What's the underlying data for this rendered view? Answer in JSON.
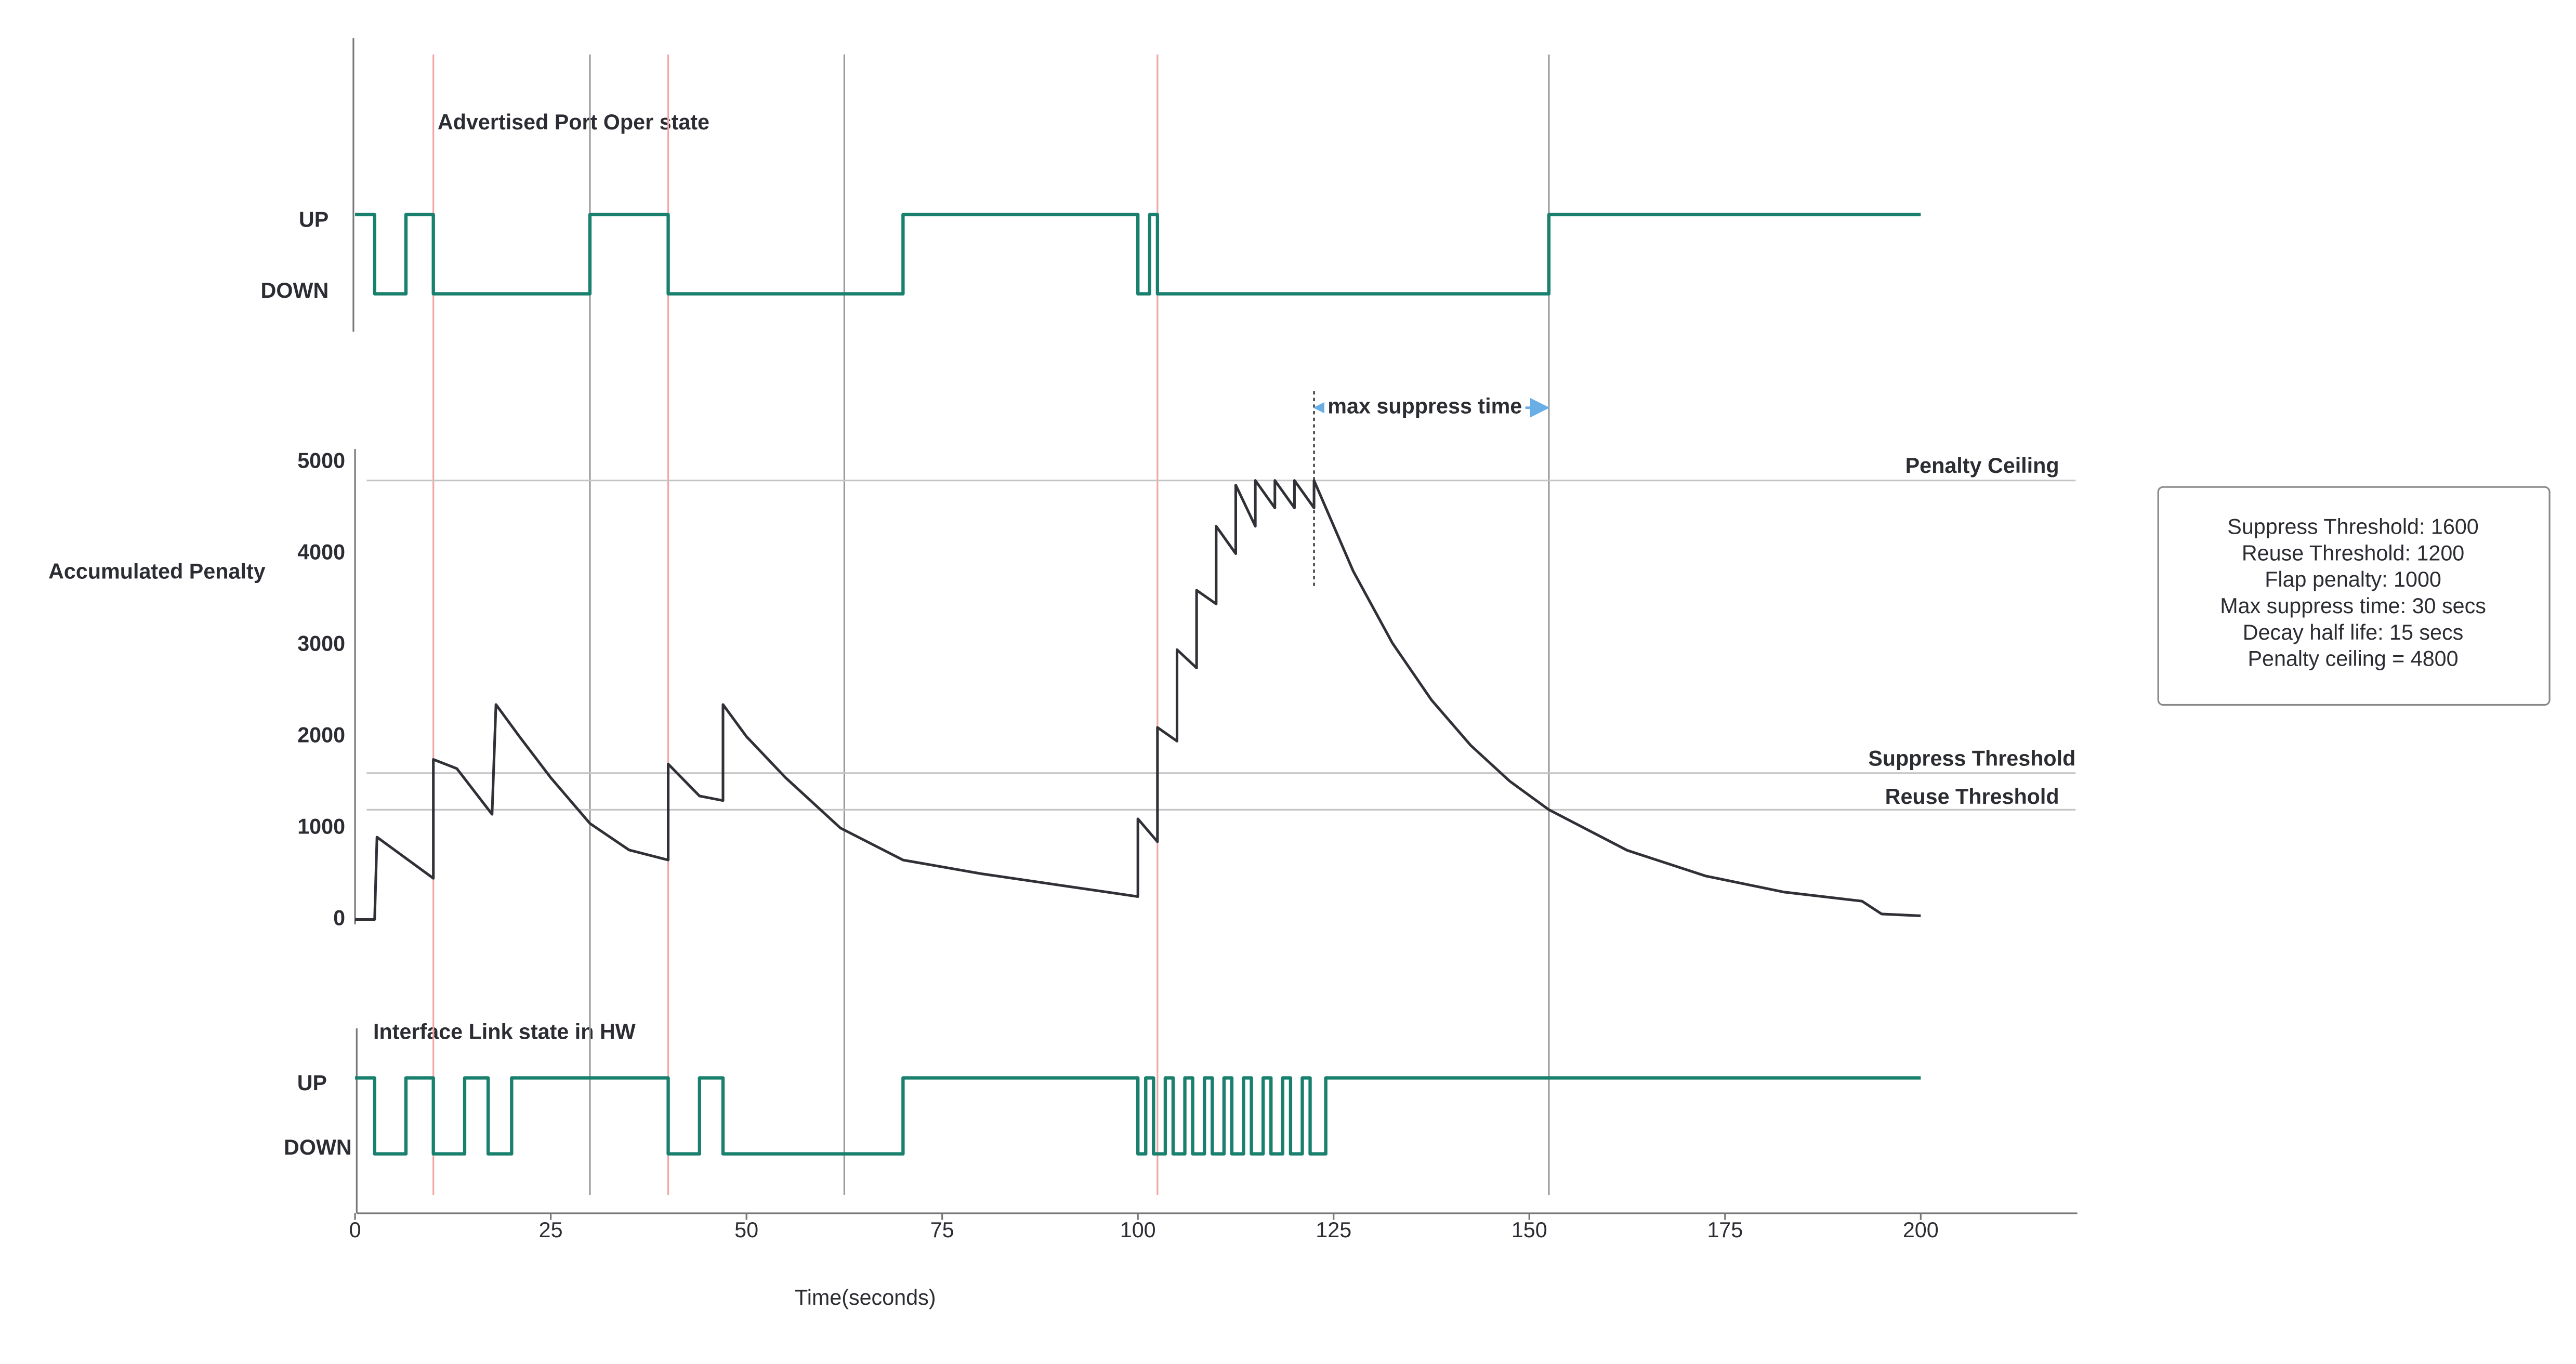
{
  "x_axis": {
    "label": "Time(seconds)",
    "xlim": [
      0,
      220
    ],
    "xticks": [
      0,
      25,
      50,
      75,
      100,
      125,
      150,
      175,
      200
    ]
  },
  "top_panel": {
    "title": "Advertised Port Oper state",
    "levels": [
      "UP",
      "DOWN"
    ],
    "times": [
      0,
      2.5,
      6.5,
      10,
      30,
      40,
      70,
      100,
      101.5,
      102.5,
      152.5,
      200
    ],
    "states": [
      1,
      0,
      1,
      0,
      1,
      0,
      1,
      0,
      1,
      0,
      1,
      1
    ]
  },
  "penalty_panel": {
    "axis_label": "Accumulated Penalty",
    "ylim": [
      0,
      5000
    ],
    "yticks": [
      0,
      1000,
      2000,
      3000,
      4000,
      5000
    ],
    "x": [
      0,
      2.5,
      2.8,
      10,
      10,
      13,
      17.5,
      18,
      21,
      25,
      30,
      35,
      40,
      40,
      44,
      47,
      47,
      50,
      55,
      62,
      70,
      80,
      100,
      100,
      102.5,
      102.5,
      105,
      105,
      107.5,
      107.5,
      110,
      110,
      112.5,
      112.5,
      115,
      115,
      117.5,
      117.5,
      120,
      120,
      122.5,
      122.5,
      127.5,
      132.5,
      137.5,
      142.5,
      147.5,
      152.5,
      162.5,
      172.5,
      182.5,
      192.5,
      195,
      200
    ],
    "values": [
      0,
      0,
      900,
      450,
      1750,
      1650,
      1150,
      2350,
      2000,
      1550,
      1050,
      760,
      650,
      1700,
      1350,
      1300,
      2350,
      2000,
      1550,
      1000,
      650,
      500,
      250,
      1100,
      850,
      2100,
      1950,
      2950,
      2750,
      3600,
      3450,
      4300,
      4000,
      4750,
      4300,
      4800,
      4500,
      4800,
      4500,
      4800,
      4500,
      4800,
      3810,
      3024,
      2400,
      1905,
      1512,
      1200,
      756,
      476,
      300,
      200,
      60,
      40
    ],
    "thresholds": [
      {
        "label": "Penalty Ceiling",
        "value": 4800
      },
      {
        "label": "Suppress Threshold",
        "value": 1600
      },
      {
        "label": "Reuse Threshold",
        "value": 1200
      }
    ],
    "annotation": {
      "label": "max suppress time",
      "start": 122.5,
      "end": 152.5
    }
  },
  "bottom_panel": {
    "title": "Interface Link state in HW",
    "levels": [
      "UP",
      "DOWN"
    ],
    "times": [
      0,
      2.5,
      6.5,
      10,
      14,
      17,
      20,
      40,
      44,
      47,
      70,
      100,
      101,
      102,
      103.5,
      104.5,
      106,
      107,
      108.5,
      109.5,
      111,
      112,
      113.5,
      114.5,
      116,
      117,
      118.5,
      119.5,
      121,
      122,
      124,
      200
    ],
    "states": [
      1,
      0,
      1,
      0,
      1,
      0,
      1,
      0,
      1,
      0,
      1,
      0,
      1,
      0,
      1,
      0,
      1,
      0,
      1,
      0,
      1,
      0,
      1,
      0,
      1,
      0,
      1,
      0,
      1,
      0,
      1,
      1
    ]
  },
  "markers": [
    {
      "time": 10,
      "color": "#f2a5a5"
    },
    {
      "time": 30,
      "color": "#9a9a9a"
    },
    {
      "time": 40,
      "color": "#f2a5a5"
    },
    {
      "time": 62.5,
      "color": "#9a9a9a"
    },
    {
      "time": 102.5,
      "color": "#f2a5a5"
    },
    {
      "time": 152.5,
      "color": "#9a9a9a"
    }
  ],
  "info_box": [
    "Suppress Threshold: 1600",
    "Reuse Threshold: 1200",
    "Flap penalty: 1000",
    "Max suppress time: 30 secs",
    "Decay half life: 15 secs",
    "Penalty ceiling = 4800"
  ]
}
